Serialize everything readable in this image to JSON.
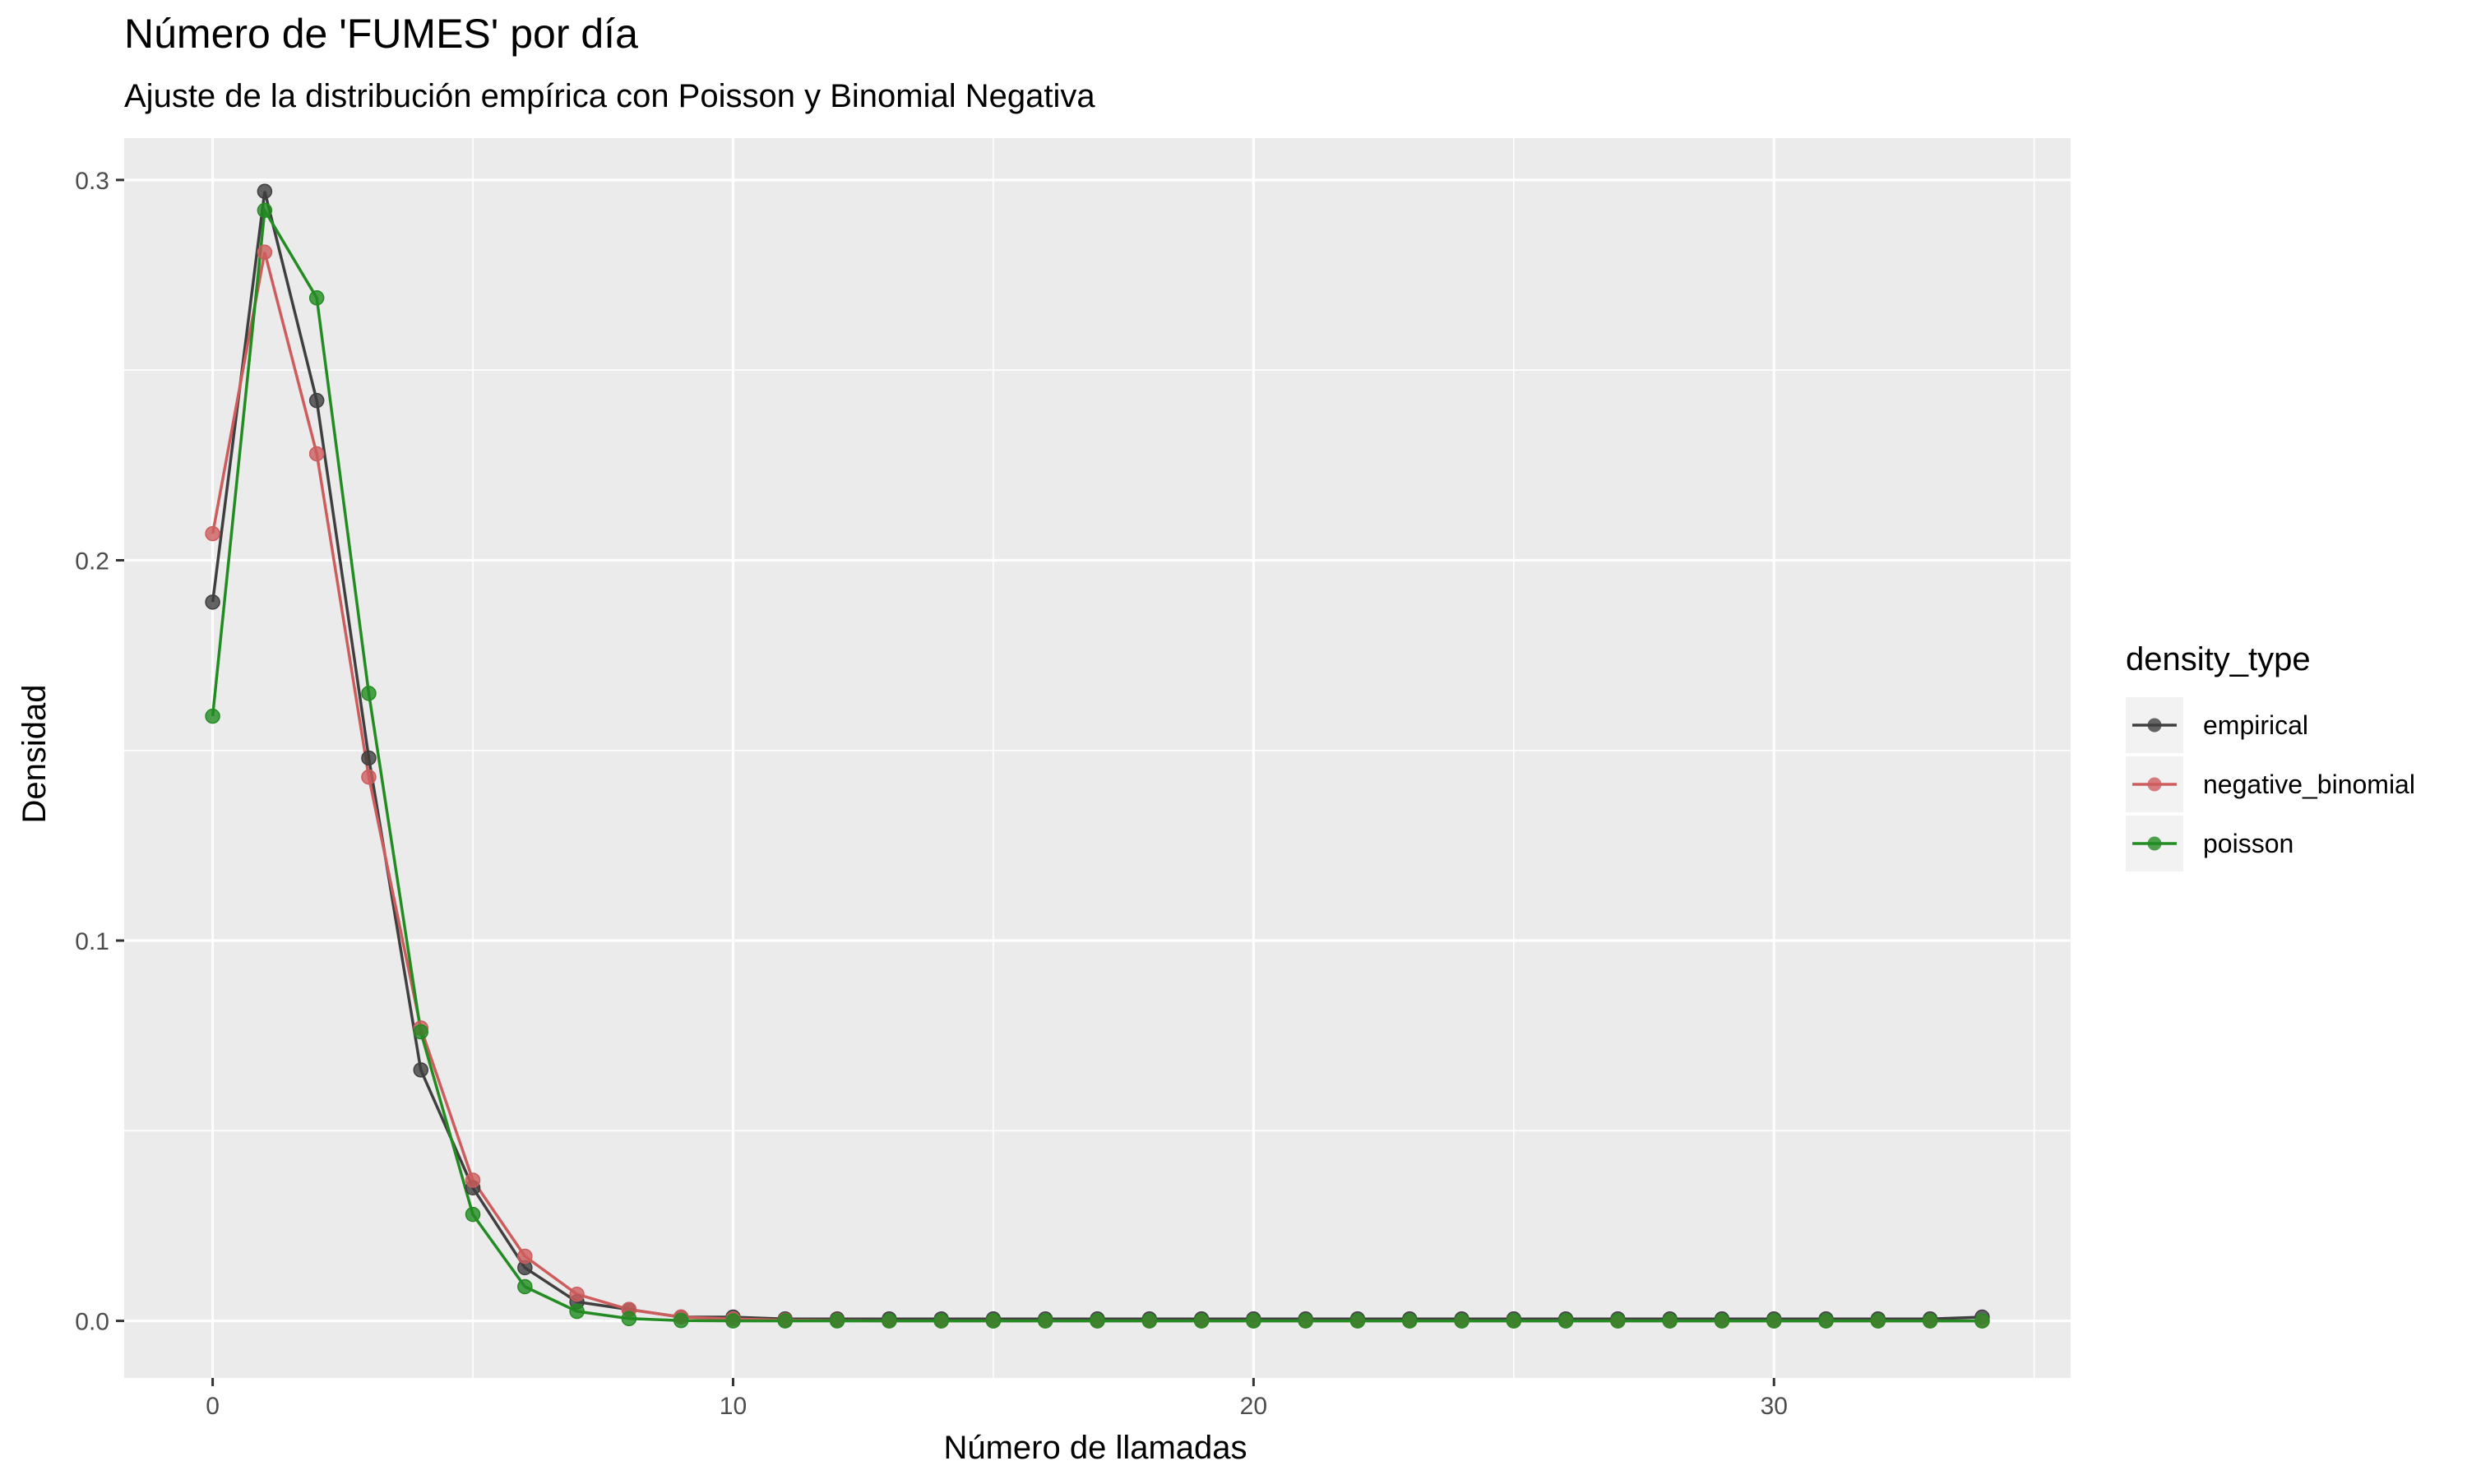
{
  "chart_data": {
    "type": "line",
    "title": "Número de 'FUMES' por día",
    "subtitle": "Ajuste de la distribución empírica con Poisson y Binomial Negativa",
    "xlabel": "Número de llamadas",
    "ylabel": "Densidad",
    "xlim": [
      -1.7,
      35.7
    ],
    "ylim": [
      -0.015,
      0.311
    ],
    "x_ticks": [
      0,
      10,
      20,
      30
    ],
    "x_tick_labels": [
      "0",
      "10",
      "20",
      "30"
    ],
    "y_ticks": [
      0.0,
      0.1,
      0.2,
      0.3
    ],
    "y_tick_labels": [
      "0.0",
      "0.1",
      "0.2",
      "0.3"
    ],
    "grid": true,
    "legend": {
      "title": "density_type",
      "position": "right"
    },
    "x": [
      0,
      1,
      2,
      3,
      4,
      5,
      6,
      7,
      8,
      9,
      10,
      11,
      12,
      13,
      14,
      15,
      16,
      17,
      18,
      19,
      20,
      21,
      22,
      23,
      24,
      25,
      26,
      27,
      28,
      29,
      30,
      31,
      32,
      33,
      34
    ],
    "series": [
      {
        "name": "empirical",
        "color": "#3f3f3f",
        "values": [
          0.189,
          0.297,
          0.242,
          0.148,
          0.066,
          0.035,
          0.014,
          0.005,
          0.003,
          0.001,
          0.001,
          0.0005,
          0.0005,
          0.0005,
          0.0005,
          0.0005,
          0.0005,
          0.0005,
          0.0005,
          0.0005,
          0.0005,
          0.0005,
          0.0005,
          0.0005,
          0.0005,
          0.0005,
          0.0005,
          0.0005,
          0.0005,
          0.0005,
          0.0005,
          0.0005,
          0.0005,
          0.0005,
          0.001
        ]
      },
      {
        "name": "negative_binomial",
        "color": "#cd5c5c",
        "values": [
          0.207,
          0.281,
          0.228,
          0.143,
          0.077,
          0.037,
          0.017,
          0.007,
          0.003,
          0.001,
          0.0005,
          0.0002,
          0.0001,
          0,
          0,
          0,
          0,
          0,
          0,
          0,
          0,
          0,
          0,
          0,
          0,
          0,
          0,
          0,
          0,
          0,
          0,
          0,
          0,
          0,
          0
        ]
      },
      {
        "name": "poisson",
        "color": "#228b22",
        "values": [
          0.159,
          0.292,
          0.269,
          0.165,
          0.076,
          0.028,
          0.009,
          0.0025,
          0.0006,
          0.0001,
          0,
          0,
          0,
          0,
          0,
          0,
          0,
          0,
          0,
          0,
          0,
          0,
          0,
          0,
          0,
          0,
          0,
          0,
          0,
          0,
          0,
          0,
          0,
          0,
          0
        ]
      }
    ]
  }
}
